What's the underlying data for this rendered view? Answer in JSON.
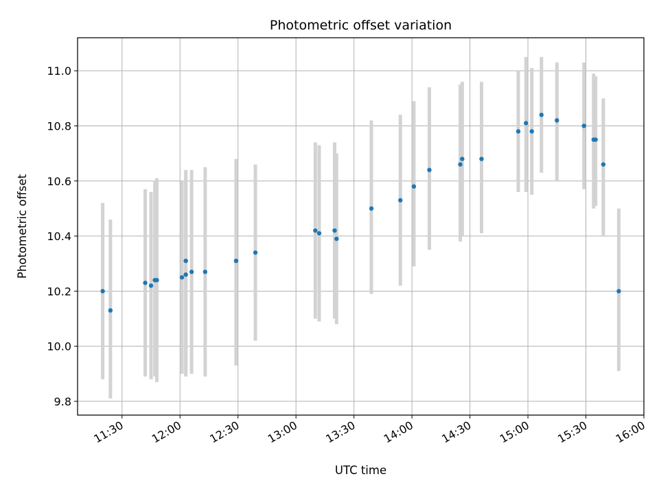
{
  "chart_data": {
    "type": "scatter",
    "title": "Photometric offset variation",
    "xlabel": "UTC time",
    "ylabel": "Photometric offset",
    "x_axis_kind": "time-of-day",
    "xlim": [
      "11:07",
      "16:00"
    ],
    "ylim": [
      9.75,
      11.12
    ],
    "x_ticks": [
      "11:30",
      "12:00",
      "12:30",
      "13:00",
      "13:30",
      "14:00",
      "14:30",
      "15:00",
      "15:30",
      "16:00"
    ],
    "y_ticks": [
      "9.8",
      "10.0",
      "10.2",
      "10.4",
      "10.6",
      "10.8",
      "11.0"
    ],
    "grid": true,
    "marker_color": "#1f77b4",
    "errorbar_color": "#d3d3d3",
    "points": [
      {
        "time": "11:20",
        "value": 10.2,
        "low": 9.88,
        "high": 10.52
      },
      {
        "time": "11:24",
        "value": 10.13,
        "low": 9.81,
        "high": 10.46
      },
      {
        "time": "11:42",
        "value": 10.23,
        "low": 9.89,
        "high": 10.57
      },
      {
        "time": "11:45",
        "value": 10.22,
        "low": 9.88,
        "high": 10.56
      },
      {
        "time": "11:47",
        "value": 10.24,
        "low": 9.89,
        "high": 10.6
      },
      {
        "time": "11:48",
        "value": 10.24,
        "low": 9.87,
        "high": 10.61
      },
      {
        "time": "12:01",
        "value": 10.25,
        "low": 9.9,
        "high": 10.6
      },
      {
        "time": "12:03",
        "value": 10.31,
        "low": 9.9,
        "high": 10.64
      },
      {
        "time": "12:03",
        "value": 10.26,
        "low": 9.89,
        "high": 10.61
      },
      {
        "time": "12:06",
        "value": 10.27,
        "low": 9.9,
        "high": 10.64
      },
      {
        "time": "12:13",
        "value": 10.27,
        "low": 9.89,
        "high": 10.65
      },
      {
        "time": "12:29",
        "value": 10.31,
        "low": 9.93,
        "high": 10.68
      },
      {
        "time": "12:39",
        "value": 10.34,
        "low": 10.02,
        "high": 10.66
      },
      {
        "time": "13:10",
        "value": 10.42,
        "low": 10.1,
        "high": 10.74
      },
      {
        "time": "13:12",
        "value": 10.41,
        "low": 10.09,
        "high": 10.73
      },
      {
        "time": "13:20",
        "value": 10.42,
        "low": 10.1,
        "high": 10.74
      },
      {
        "time": "13:21",
        "value": 10.39,
        "low": 10.08,
        "high": 10.7
      },
      {
        "time": "13:39",
        "value": 10.5,
        "low": 10.19,
        "high": 10.82
      },
      {
        "time": "13:54",
        "value": 10.53,
        "low": 10.22,
        "high": 10.84
      },
      {
        "time": "14:01",
        "value": 10.58,
        "low": 10.29,
        "high": 10.89
      },
      {
        "time": "14:09",
        "value": 10.64,
        "low": 10.35,
        "high": 10.94
      },
      {
        "time": "14:25",
        "value": 10.66,
        "low": 10.38,
        "high": 10.95
      },
      {
        "time": "14:26",
        "value": 10.68,
        "low": 10.4,
        "high": 10.96
      },
      {
        "time": "14:36",
        "value": 10.68,
        "low": 10.41,
        "high": 10.96
      },
      {
        "time": "14:55",
        "value": 10.78,
        "low": 10.56,
        "high": 11.0
      },
      {
        "time": "14:59",
        "value": 10.81,
        "low": 10.56,
        "high": 11.05
      },
      {
        "time": "15:02",
        "value": 10.78,
        "low": 10.55,
        "high": 11.01
      },
      {
        "time": "15:07",
        "value": 10.84,
        "low": 10.63,
        "high": 11.05
      },
      {
        "time": "15:15",
        "value": 10.82,
        "low": 10.6,
        "high": 11.03
      },
      {
        "time": "15:29",
        "value": 10.8,
        "low": 10.57,
        "high": 11.03
      },
      {
        "time": "15:34",
        "value": 10.75,
        "low": 10.5,
        "high": 10.99
      },
      {
        "time": "15:35",
        "value": 10.75,
        "low": 10.51,
        "high": 10.98
      },
      {
        "time": "15:39",
        "value": 10.66,
        "low": 10.4,
        "high": 10.9
      },
      {
        "time": "15:47",
        "value": 10.2,
        "low": 9.91,
        "high": 10.5
      }
    ]
  }
}
